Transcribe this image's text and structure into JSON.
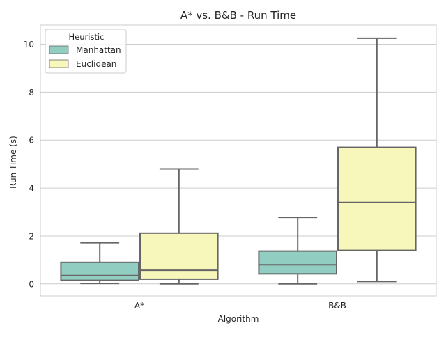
{
  "chart_data": {
    "type": "box",
    "title": "A* vs. B&B - Run Time",
    "xlabel": "Algorithm",
    "ylabel": "Run Time (s)",
    "categories": [
      "A*",
      "B&B"
    ],
    "ylim": [
      -0.5,
      10.8
    ],
    "yticks": [
      0,
      2,
      4,
      6,
      8,
      10
    ],
    "grid": "horizontal",
    "legend": {
      "title": "Heuristic",
      "position": "top-left",
      "entries": [
        "Manhattan",
        "Euclidean"
      ]
    },
    "series": [
      {
        "name": "Manhattan",
        "color": "#92cdc1",
        "boxes": [
          {
            "category": "A*",
            "whisker_low": 0.02,
            "q1": 0.15,
            "median": 0.35,
            "q3": 0.9,
            "whisker_high": 1.72
          },
          {
            "category": "B&B",
            "whisker_low": 0.0,
            "q1": 0.42,
            "median": 0.8,
            "q3": 1.37,
            "whisker_high": 2.78
          }
        ]
      },
      {
        "name": "Euclidean",
        "color": "#f7f7bb",
        "boxes": [
          {
            "category": "A*",
            "whisker_low": 0.0,
            "q1": 0.2,
            "median": 0.57,
            "q3": 2.12,
            "whisker_high": 4.8
          },
          {
            "category": "B&B",
            "whisker_low": 0.1,
            "q1": 1.4,
            "median": 3.4,
            "q3": 5.7,
            "whisker_high": 10.25
          }
        ]
      }
    ],
    "colors": {
      "box_edge": "#666666",
      "grid": "#cccccc",
      "axes_frame": "#cccccc"
    }
  }
}
